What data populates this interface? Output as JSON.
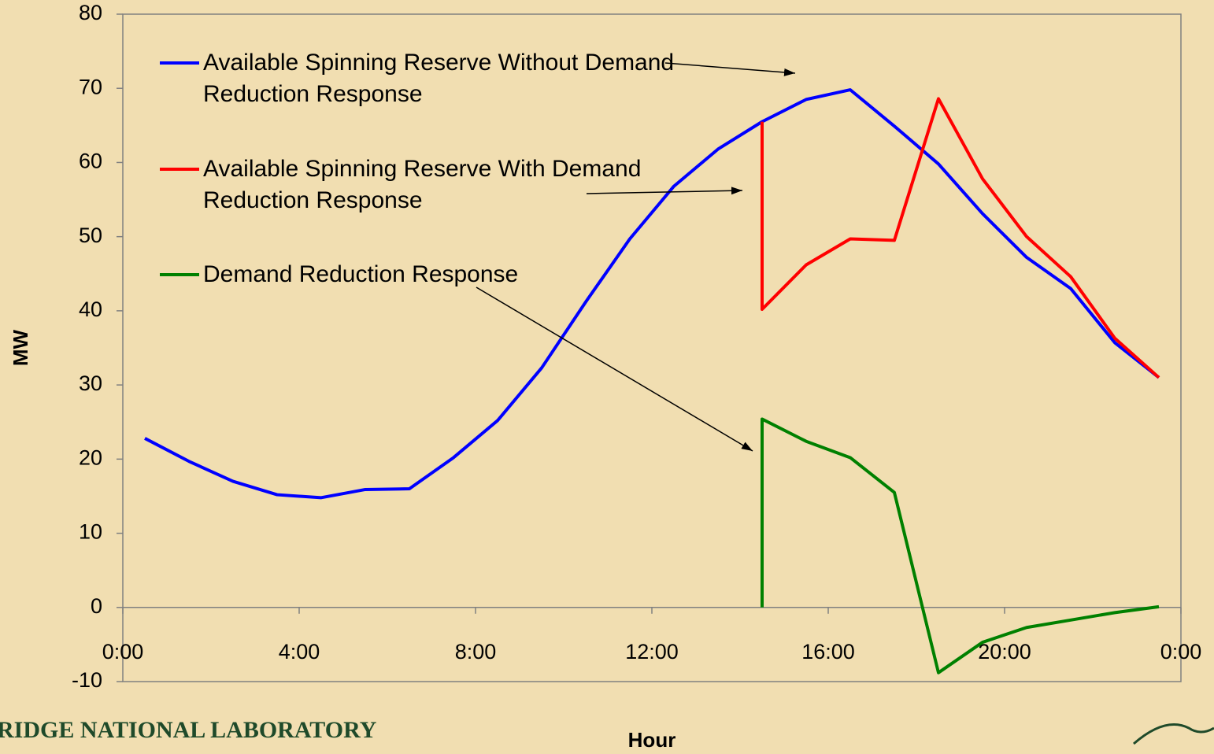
{
  "chart_data": {
    "type": "line",
    "xlabel": "Hour",
    "ylabel": "MW",
    "footer": "RIDGE NATIONAL LABORATORY",
    "xlim": [
      0,
      24
    ],
    "xticks": [
      {
        "value": 0,
        "label": "0:00"
      },
      {
        "value": 4,
        "label": "4:00"
      },
      {
        "value": 8,
        "label": "8:00"
      },
      {
        "value": 12,
        "label": "12:00"
      },
      {
        "value": 16,
        "label": "16:00"
      },
      {
        "value": 20,
        "label": "20:00"
      },
      {
        "value": 24,
        "label": "0:00"
      }
    ],
    "ylim": [
      -10,
      80
    ],
    "yticks": [
      -10,
      0,
      10,
      20,
      30,
      40,
      50,
      60,
      70,
      80
    ],
    "series": [
      {
        "name": "Available Spinning Reserve Without Demand Reduction Response",
        "color": "#0000ff",
        "x": [
          0.5,
          1.5,
          2.5,
          3.5,
          4.5,
          5.5,
          6.5,
          7.5,
          8.5,
          9.5,
          10.5,
          11.5,
          12.5,
          13.5,
          14.5,
          15.5,
          16.5,
          17.5,
          18.5,
          19.5,
          20.5,
          21.5,
          22.5,
          23.5
        ],
        "values": [
          22.8,
          19.7,
          17.0,
          15.2,
          14.8,
          15.9,
          16.0,
          20.2,
          25.2,
          32.3,
          41.2,
          49.7,
          56.8,
          61.8,
          65.5,
          68.5,
          69.8,
          64.9,
          59.8,
          53.1,
          47.2,
          43.0,
          35.7,
          31.0
        ]
      },
      {
        "name": "Available Spinning Reserve With Demand Reduction Response",
        "color": "#ff0000",
        "x": [
          14.5,
          14.5,
          15.5,
          16.5,
          17.5,
          18.5,
          19.5,
          20.5,
          21.5,
          22.5,
          23.5
        ],
        "values": [
          65.5,
          40.2,
          46.2,
          49.7,
          49.5,
          68.6,
          57.8,
          50.0,
          44.6,
          36.3,
          31.0
        ]
      },
      {
        "name": "Demand Reduction Response",
        "color": "#008000",
        "x": [
          14.5,
          14.5,
          15.5,
          16.5,
          17.5,
          18.5,
          19.5,
          20.5,
          21.5,
          22.5,
          23.5
        ],
        "values": [
          0,
          25.4,
          22.4,
          20.2,
          15.5,
          -8.8,
          -4.7,
          -2.7,
          -1.7,
          -0.7,
          0.1
        ]
      }
    ]
  }
}
